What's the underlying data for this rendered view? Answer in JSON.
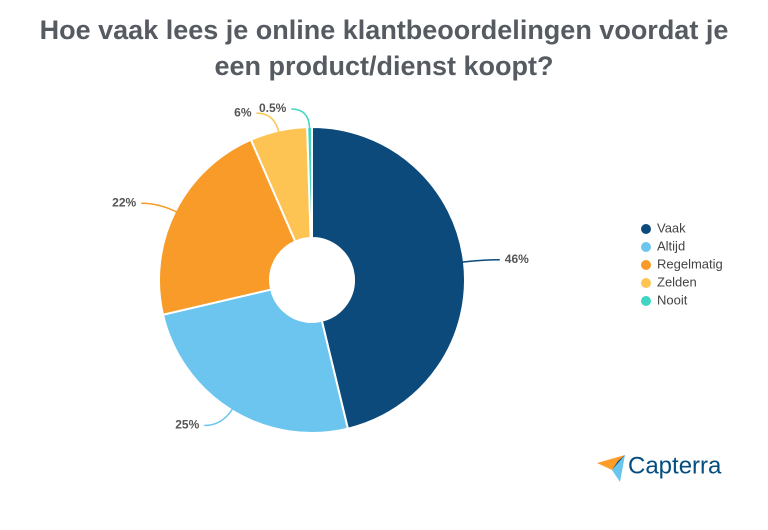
{
  "chart_data": {
    "type": "donut",
    "title": "Hoe vaak lees je online klantbeoordelingen voordat je een product/dienst koopt?",
    "categories": [
      "Vaak",
      "Altijd",
      "Regelmatig",
      "Zelden",
      "Nooit"
    ],
    "values": [
      46,
      25,
      22,
      6,
      0.5
    ],
    "value_labels": [
      "46%",
      "25%",
      "22%",
      "6%",
      "0.5%"
    ],
    "colors": [
      "#0b4a7b",
      "#6cc5ef",
      "#f89b28",
      "#fdc453",
      "#3fd6c1"
    ],
    "legend": "right"
  },
  "branding": "Capterra"
}
